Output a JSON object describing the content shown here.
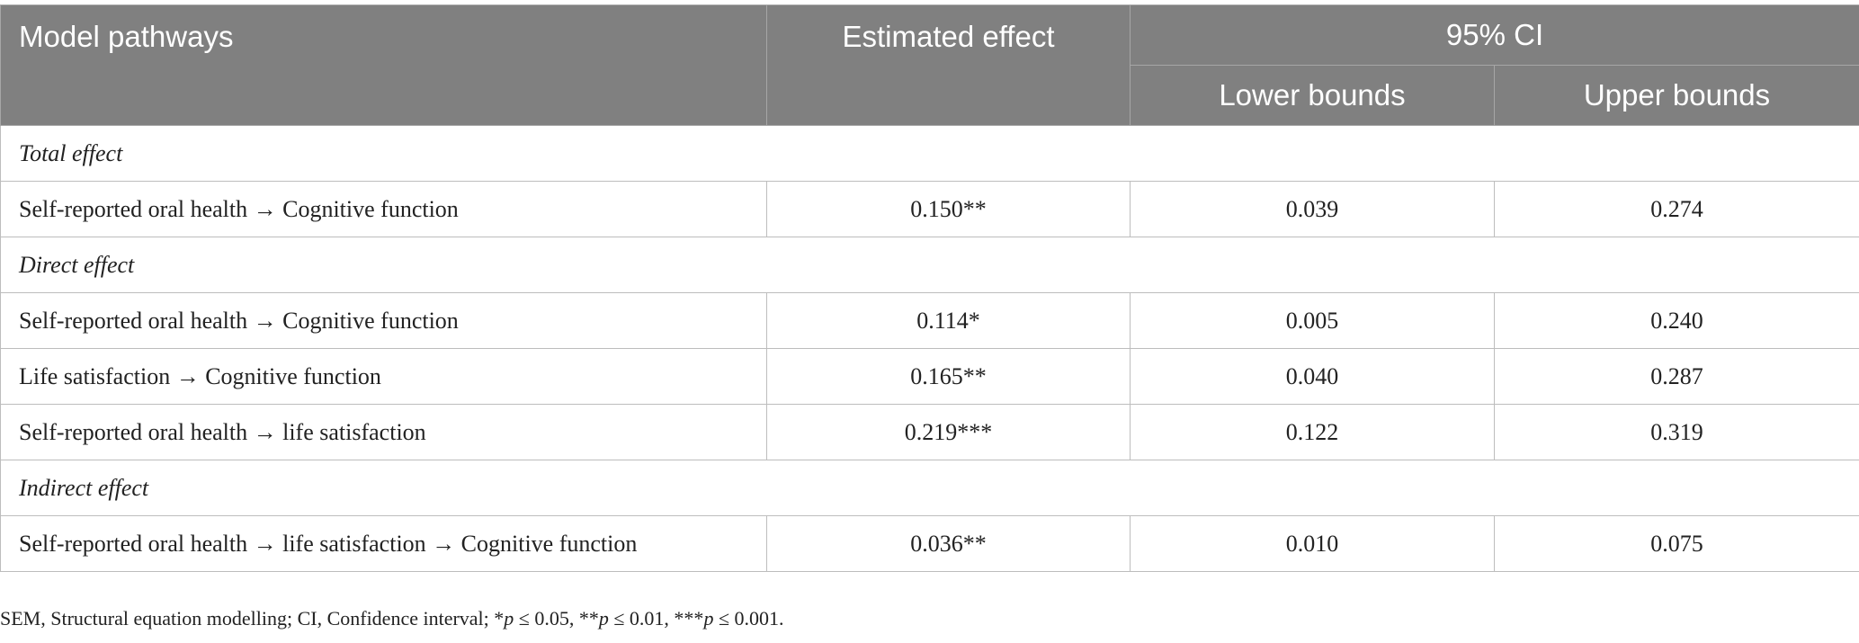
{
  "table": {
    "header": [
      "Model pathways",
      "Estimated effect",
      "95% CI"
    ],
    "subheader": [
      "Lower bounds",
      "Upper bounds"
    ],
    "sections": [
      {
        "title": "Total effect",
        "rows": [
          [
            "Self-reported oral health → Cognitive function",
            "0.150**",
            "0.039",
            "0.274"
          ]
        ]
      },
      {
        "title": "Direct effect",
        "rows": [
          [
            "Self-reported oral health → Cognitive function",
            "0.114*",
            "0.005",
            "0.240"
          ],
          [
            "Life satisfaction → Cognitive function",
            "0.165**",
            "0.040",
            "0.287"
          ],
          [
            "Self-reported oral health → life satisfaction",
            "0.219***",
            "0.122",
            "0.319"
          ]
        ]
      },
      {
        "title": "Indirect effect",
        "rows": [
          [
            "Self-reported oral health → life satisfaction → Cognitive function",
            "0.036**",
            "0.010",
            "0.075"
          ]
        ]
      }
    ]
  },
  "footnote": [
    "SEM, Structural equation modelling; CI, Confidence interval; *",
    "p",
    " ≤ 0.05, **",
    "p",
    " ≤ 0.01, ***",
    "p",
    " ≤ 0.001."
  ]
}
